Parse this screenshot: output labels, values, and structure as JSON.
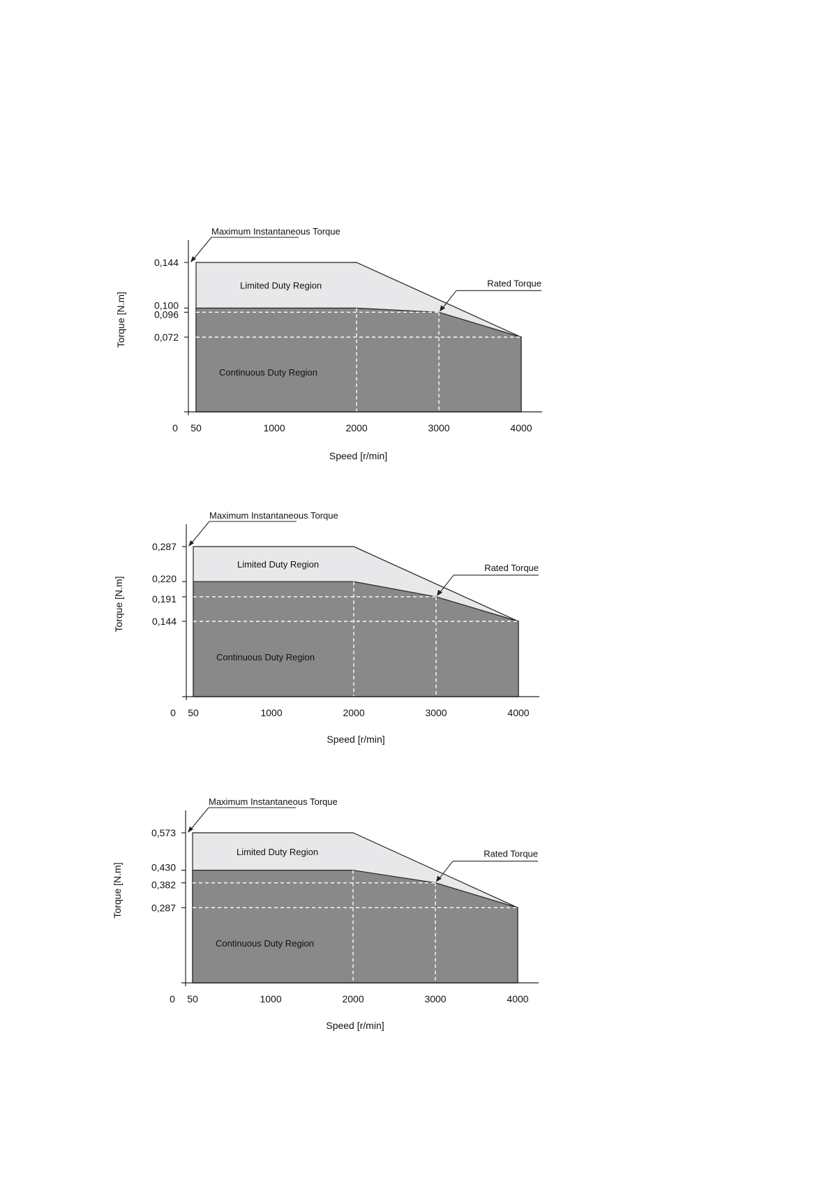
{
  "chart_data": [
    {
      "type": "area",
      "xlabel": "Speed [r/min]",
      "ylabel": "Torque [N.m]",
      "x_ticks": [
        "0",
        "50",
        "1000",
        "2000",
        "3000",
        "4000"
      ],
      "y_ticks": [
        "0,144",
        "0,100",
        "0,096",
        "0,072"
      ],
      "xlim": [
        0,
        4200
      ],
      "ylim": [
        0,
        0.144
      ],
      "limited_duty_boundary": [
        [
          50,
          0.144
        ],
        [
          2000,
          0.144
        ],
        [
          4000,
          0.072
        ]
      ],
      "continuous_duty_boundary": [
        [
          50,
          0.1
        ],
        [
          2000,
          0.1
        ],
        [
          3000,
          0.096
        ],
        [
          4000,
          0.072
        ]
      ],
      "max_instantaneous_torque": 0.144,
      "rated_torque_point": [
        3000,
        0.096
      ],
      "regions": [
        "Limited Duty Region",
        "Continuous Duty Region"
      ],
      "annotations": [
        "Maximum Instantaneous Torque",
        "Rated Torque"
      ],
      "colors": {
        "limited": "#e8e8ea",
        "continuous": "#898989",
        "guide": "#ffffff"
      }
    },
    {
      "type": "area",
      "xlabel": "Speed [r/min]",
      "ylabel": "Torque [N.m]",
      "x_ticks": [
        "0",
        "50",
        "1000",
        "2000",
        "3000",
        "4000"
      ],
      "y_ticks": [
        "0,287",
        "0,220",
        "0,191",
        "0,144"
      ],
      "xlim": [
        0,
        4200
      ],
      "ylim": [
        0,
        0.287
      ],
      "limited_duty_boundary": [
        [
          50,
          0.287
        ],
        [
          2000,
          0.287
        ],
        [
          4000,
          0.144
        ]
      ],
      "continuous_duty_boundary": [
        [
          50,
          0.22
        ],
        [
          2000,
          0.22
        ],
        [
          3000,
          0.191
        ],
        [
          4000,
          0.144
        ]
      ],
      "max_instantaneous_torque": 0.287,
      "rated_torque_point": [
        3000,
        0.191
      ],
      "regions": [
        "Limited Duty Region",
        "Continuous Duty Region"
      ],
      "annotations": [
        "Maximum Instantaneous Torque",
        "Rated Torque"
      ],
      "colors": {
        "limited": "#e8e8ea",
        "continuous": "#898989",
        "guide": "#ffffff"
      }
    },
    {
      "type": "area",
      "xlabel": "Speed [r/min]",
      "ylabel": "Torque [N.m]",
      "x_ticks": [
        "0",
        "50",
        "1000",
        "2000",
        "3000",
        "4000"
      ],
      "y_ticks": [
        "0,573",
        "0,430",
        "0,382",
        "0,287"
      ],
      "xlim": [
        0,
        4200
      ],
      "ylim": [
        0,
        0.573
      ],
      "limited_duty_boundary": [
        [
          50,
          0.573
        ],
        [
          2000,
          0.573
        ],
        [
          4000,
          0.287
        ]
      ],
      "continuous_duty_boundary": [
        [
          50,
          0.43
        ],
        [
          2000,
          0.43
        ],
        [
          3000,
          0.382
        ],
        [
          4000,
          0.287
        ]
      ],
      "max_instantaneous_torque": 0.573,
      "rated_torque_point": [
        3000,
        0.382
      ],
      "regions": [
        "Limited Duty Region",
        "Continuous Duty Region"
      ],
      "annotations": [
        "Maximum Instantaneous Torque",
        "Rated Torque"
      ],
      "colors": {
        "limited": "#e8e8ea",
        "continuous": "#898989",
        "guide": "#ffffff"
      }
    }
  ]
}
